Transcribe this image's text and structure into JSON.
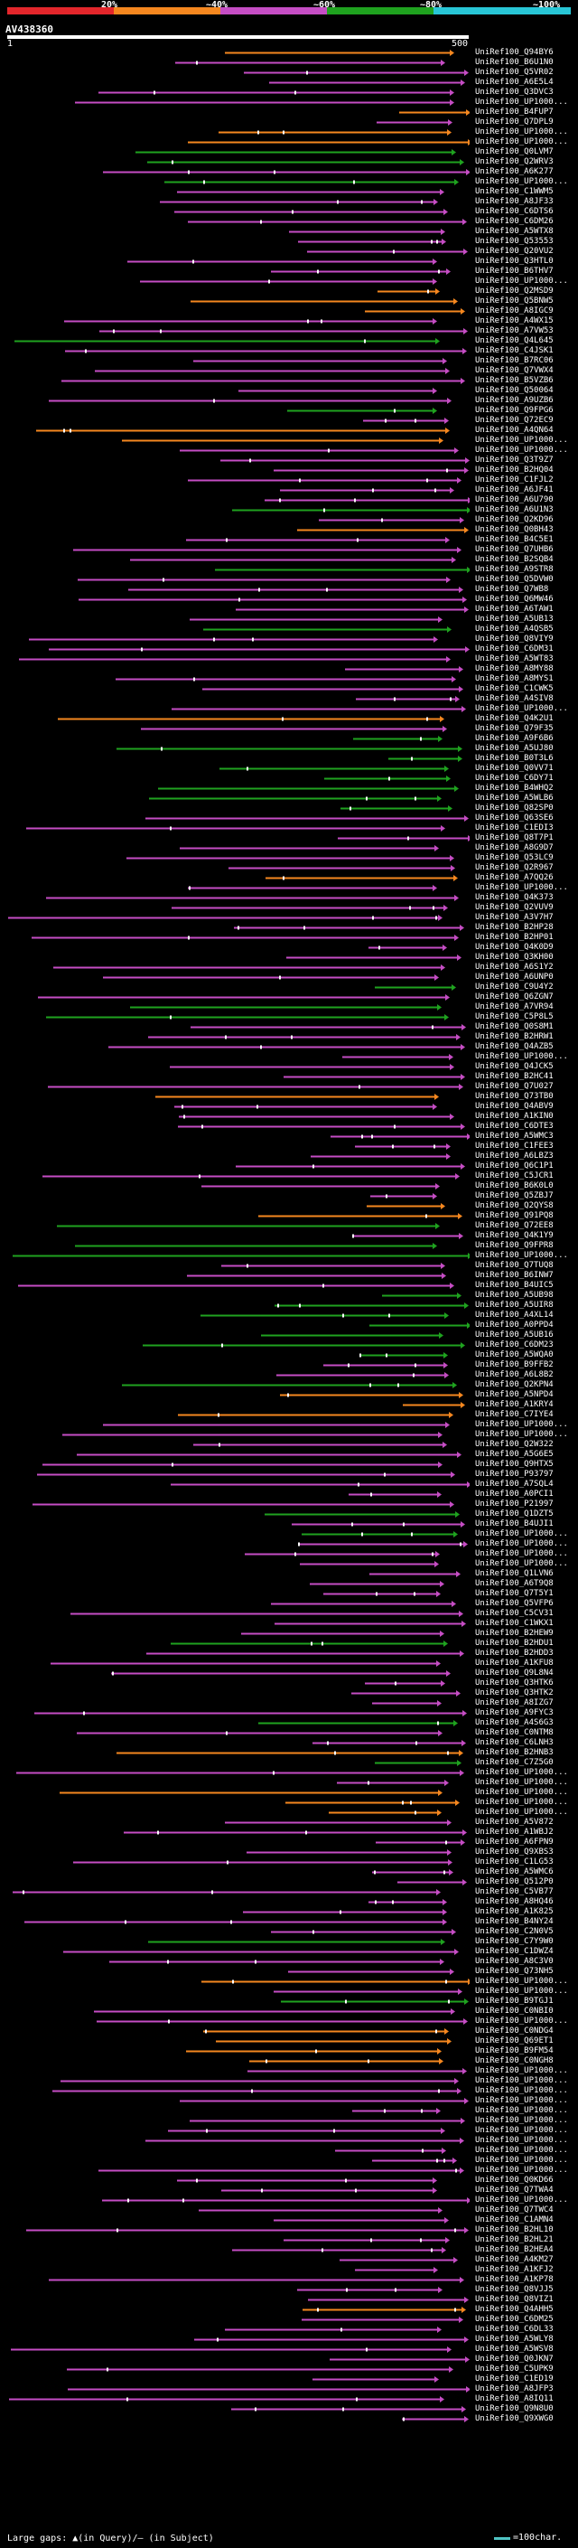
{
  "legend": {
    "colors": [
      "#e3262b",
      "#f5871f",
      "#c54dc4",
      "#1fa21f",
      "#28c6d6"
    ],
    "thresholds": [
      "20%",
      "~40%",
      "~60%",
      "~80%",
      "~100%"
    ]
  },
  "query": {
    "name": "AV438360",
    "start": "1",
    "end": "500"
  },
  "hits": [
    {
      "id": "UniRef100_Q94BY6",
      "color": "#f5871f"
    },
    {
      "id": "UniRef100_B6U1N0",
      "color": "#c54dc4"
    },
    {
      "id": "UniRef100_Q5VR02",
      "color": "#c54dc4"
    },
    {
      "id": "UniRef100_A6E5L4",
      "color": "#c54dc4"
    },
    {
      "id": "UniRef100_Q3DVC3",
      "color": "#c54dc4"
    },
    {
      "id": "UniRef100_UP1000...",
      "color": "#c54dc4"
    },
    {
      "id": "UniRef100_B4FUP7",
      "color": "#f5871f"
    },
    {
      "id": "UniRef100_Q7DPL9",
      "color": "#c54dc4"
    },
    {
      "id": "UniRef100_UP1000...",
      "color": "#f5871f"
    },
    {
      "id": "UniRef100_UP1000...",
      "color": "#f5871f"
    },
    {
      "id": "UniRef100_Q0LVM7",
      "color": "#1fa21f"
    },
    {
      "id": "UniRef100_Q2WRV3",
      "color": "#1fa21f"
    },
    {
      "id": "UniRef100_A6K277",
      "color": "#c54dc4"
    },
    {
      "id": "UniRef100_UP1000...",
      "color": "#1fa21f"
    },
    {
      "id": "UniRef100_C1WWM5",
      "color": "#c54dc4"
    },
    {
      "id": "UniRef100_A8JF33",
      "color": "#c54dc4"
    },
    {
      "id": "UniRef100_C6DTS6",
      "color": "#c54dc4"
    },
    {
      "id": "UniRef100_C6DM26",
      "color": "#c54dc4"
    },
    {
      "id": "UniRef100_A5WTX8",
      "color": "#c54dc4"
    },
    {
      "id": "UniRef100_Q53553",
      "color": "#c54dc4"
    },
    {
      "id": "UniRef100_Q20VU2",
      "color": "#c54dc4"
    },
    {
      "id": "UniRef100_Q3HTL0",
      "color": "#c54dc4"
    },
    {
      "id": "UniRef100_B6THV7",
      "color": "#c54dc4"
    },
    {
      "id": "UniRef100_UP1000...",
      "color": "#c54dc4"
    },
    {
      "id": "UniRef100_Q2MSD9",
      "color": "#f5871f"
    },
    {
      "id": "UniRef100_Q5BNW5",
      "color": "#f5871f"
    },
    {
      "id": "UniRef100_A8IGC9",
      "color": "#f5871f"
    },
    {
      "id": "UniRef100_A4WX15",
      "color": "#c54dc4"
    },
    {
      "id": "UniRef100_A7VW53",
      "color": "#c54dc4"
    },
    {
      "id": "UniRef100_Q4L645",
      "color": "#1fa21f"
    },
    {
      "id": "UniRef100_C4JSK1",
      "color": "#c54dc4"
    },
    {
      "id": "UniRef100_B7RC06",
      "color": "#c54dc4"
    },
    {
      "id": "UniRef100_Q7VWX4",
      "color": "#c54dc4"
    },
    {
      "id": "UniRef100_B5VZB6",
      "color": "#c54dc4"
    },
    {
      "id": "UniRef100_Q50064",
      "color": "#c54dc4"
    },
    {
      "id": "UniRef100_A9UZB6",
      "color": "#c54dc4"
    },
    {
      "id": "UniRef100_Q9FPG6",
      "color": "#1fa21f"
    },
    {
      "id": "UniRef100_Q72EC9",
      "color": "#c54dc4"
    },
    {
      "id": "UniRef100_A4QN64",
      "color": "#f5871f"
    },
    {
      "id": "UniRef100_UP1000...",
      "color": "#f5871f"
    },
    {
      "id": "UniRef100_UP1000...",
      "color": "#c54dc4"
    },
    {
      "id": "UniRef100_Q3T9Z7",
      "color": "#c54dc4"
    },
    {
      "id": "UniRef100_B2HQ04",
      "color": "#c54dc4"
    },
    {
      "id": "UniRef100_C1FJL2",
      "color": "#c54dc4"
    },
    {
      "id": "UniRef100_A6JF41",
      "color": "#c54dc4"
    },
    {
      "id": "UniRef100_A6U790",
      "color": "#c54dc4"
    },
    {
      "id": "UniRef100_A6U1N3",
      "color": "#1fa21f"
    },
    {
      "id": "UniRef100_Q2KD96",
      "color": "#c54dc4"
    },
    {
      "id": "UniRef100_Q0BH43",
      "color": "#f5871f"
    },
    {
      "id": "UniRef100_B4C5E1",
      "color": "#c54dc4"
    },
    {
      "id": "UniRef100_Q7UHB6",
      "color": "#c54dc4"
    },
    {
      "id": "UniRef100_B2SQB4",
      "color": "#c54dc4"
    },
    {
      "id": "UniRef100_A9STR8",
      "color": "#1fa21f"
    },
    {
      "id": "UniRef100_Q5DVW0",
      "color": "#c54dc4"
    },
    {
      "id": "UniRef100_Q7WB8",
      "color": "#c54dc4"
    },
    {
      "id": "UniRef100_Q6MW46",
      "color": "#c54dc4"
    },
    {
      "id": "UniRef100_A6TAW1",
      "color": "#c54dc4"
    },
    {
      "id": "UniRef100_A5UB13",
      "color": "#c54dc4"
    },
    {
      "id": "UniRef100_A4QSB5",
      "color": "#1fa21f"
    },
    {
      "id": "UniRef100_Q8VIY9",
      "color": "#c54dc4"
    },
    {
      "id": "UniRef100_C6DM31",
      "color": "#c54dc4"
    },
    {
      "id": "UniRef100_A5WT83",
      "color": "#c54dc4"
    },
    {
      "id": "UniRef100_A8MY88",
      "color": "#c54dc4"
    },
    {
      "id": "UniRef100_A8MYS1",
      "color": "#c54dc4"
    },
    {
      "id": "UniRef100_C1CWK5",
      "color": "#c54dc4"
    },
    {
      "id": "UniRef100_A4SIV8",
      "color": "#c54dc4"
    },
    {
      "id": "UniRef100_UP1000...",
      "color": "#c54dc4"
    },
    {
      "id": "UniRef100_Q4K2U1",
      "color": "#f5871f"
    },
    {
      "id": "UniRef100_Q79F35",
      "color": "#c54dc4"
    },
    {
      "id": "UniRef100_A9F6B6",
      "color": "#1fa21f"
    },
    {
      "id": "UniRef100_A5UJ80",
      "color": "#1fa21f"
    },
    {
      "id": "UniRef100_B0T3L6",
      "color": "#1fa21f"
    },
    {
      "id": "UniRef100_Q0VV71",
      "color": "#1fa21f"
    },
    {
      "id": "UniRef100_C6DY71",
      "color": "#1fa21f"
    },
    {
      "id": "UniRef100_B4WHQ2",
      "color": "#1fa21f"
    },
    {
      "id": "UniRef100_A5WLB6",
      "color": "#1fa21f"
    },
    {
      "id": "UniRef100_Q82SP0",
      "color": "#1fa21f"
    },
    {
      "id": "UniRef100_Q63SE6",
      "color": "#c54dc4"
    },
    {
      "id": "UniRef100_C1EDI3",
      "color": "#c54dc4"
    },
    {
      "id": "UniRef100_Q8T7P1",
      "color": "#c54dc4"
    },
    {
      "id": "UniRef100_A8G9D7",
      "color": "#c54dc4"
    },
    {
      "id": "UniRef100_Q53LC9",
      "color": "#c54dc4"
    },
    {
      "id": "UniRef100_Q2R967",
      "color": "#c54dc4"
    },
    {
      "id": "UniRef100_A7QQ26",
      "color": "#f5871f"
    },
    {
      "id": "UniRef100_UP1000...",
      "color": "#c54dc4"
    },
    {
      "id": "UniRef100_Q4K373",
      "color": "#c54dc4"
    },
    {
      "id": "UniRef100_Q2VUV9",
      "color": "#c54dc4"
    },
    {
      "id": "UniRef100_A3V7H7",
      "color": "#c54dc4"
    },
    {
      "id": "UniRef100_B2HP28",
      "color": "#c54dc4"
    },
    {
      "id": "UniRef100_B2HP01",
      "color": "#c54dc4"
    },
    {
      "id": "UniRef100_Q4K0D9",
      "color": "#c54dc4"
    },
    {
      "id": "UniRef100_Q3KH00",
      "color": "#c54dc4"
    },
    {
      "id": "UniRef100_A6S1Y2",
      "color": "#c54dc4"
    },
    {
      "id": "UniRef100_A6UNP0",
      "color": "#c54dc4"
    },
    {
      "id": "UniRef100_C9U4Y2",
      "color": "#1fa21f"
    },
    {
      "id": "UniRef100_Q6ZGN7",
      "color": "#c54dc4"
    },
    {
      "id": "UniRef100_A7VR94",
      "color": "#1fa21f"
    },
    {
      "id": "UniRef100_C5P8L5",
      "color": "#1fa21f"
    },
    {
      "id": "UniRef100_Q0S8M1",
      "color": "#c54dc4"
    },
    {
      "id": "UniRef100_B2HRW1",
      "color": "#c54dc4"
    },
    {
      "id": "UniRef100_Q4AZB5",
      "color": "#c54dc4"
    },
    {
      "id": "UniRef100_UP1000...",
      "color": "#c54dc4"
    },
    {
      "id": "UniRef100_Q4JCK5",
      "color": "#c54dc4"
    },
    {
      "id": "UniRef100_B2HC41",
      "color": "#c54dc4"
    },
    {
      "id": "UniRef100_Q7U027",
      "color": "#c54dc4"
    },
    {
      "id": "UniRef100_Q73TB0",
      "color": "#f5871f"
    },
    {
      "id": "UniRef100_Q4ABV9",
      "color": "#c54dc4"
    },
    {
      "id": "UniRef100_A1KIN0",
      "color": "#c54dc4"
    },
    {
      "id": "UniRef100_C6DTE3",
      "color": "#c54dc4"
    },
    {
      "id": "UniRef100_A5WMC3",
      "color": "#c54dc4"
    },
    {
      "id": "UniRef100_C1FEE3",
      "color": "#c54dc4"
    },
    {
      "id": "UniRef100_A6LBZ3",
      "color": "#c54dc4"
    },
    {
      "id": "UniRef100_Q6C1P1",
      "color": "#c54dc4"
    },
    {
      "id": "UniRef100_C5JCR1",
      "color": "#c54dc4"
    },
    {
      "id": "UniRef100_B6K0L0",
      "color": "#c54dc4"
    },
    {
      "id": "UniRef100_Q5ZBJ7",
      "color": "#c54dc4"
    },
    {
      "id": "UniRef100_Q2QYS8",
      "color": "#f5871f"
    },
    {
      "id": "UniRef100_Q91PQ8",
      "color": "#f5871f"
    },
    {
      "id": "UniRef100_Q72EE8",
      "color": "#1fa21f"
    },
    {
      "id": "UniRef100_Q4K1Y9",
      "color": "#c54dc4"
    },
    {
      "id": "UniRef100_Q9FPR8",
      "color": "#1fa21f"
    },
    {
      "id": "UniRef100_UP1000...",
      "color": "#1fa21f"
    },
    {
      "id": "UniRef100_Q7TUQ8",
      "color": "#c54dc4"
    },
    {
      "id": "UniRef100_B6INW7",
      "color": "#c54dc4"
    },
    {
      "id": "UniRef100_B4UIC5",
      "color": "#c54dc4"
    },
    {
      "id": "UniRef100_A5UB98",
      "color": "#1fa21f"
    },
    {
      "id": "UniRef100_A5UIR8",
      "color": "#1fa21f"
    },
    {
      "id": "UniRef100_A4XL14",
      "color": "#1fa21f"
    },
    {
      "id": "UniRef100_A0PPD4",
      "color": "#1fa21f"
    },
    {
      "id": "UniRef100_A5UB16",
      "color": "#1fa21f"
    },
    {
      "id": "UniRef100_C6DM23",
      "color": "#1fa21f"
    },
    {
      "id": "UniRef100_A5WQA0",
      "color": "#1fa21f"
    },
    {
      "id": "UniRef100_B9FFB2",
      "color": "#c54dc4"
    },
    {
      "id": "UniRef100_A6L8B2",
      "color": "#c54dc4"
    },
    {
      "id": "UniRef100_Q2KPN4",
      "color": "#1fa21f"
    },
    {
      "id": "UniRef100_A5NPD4",
      "color": "#f5871f"
    },
    {
      "id": "UniRef100_A1KRY4",
      "color": "#f5871f"
    },
    {
      "id": "UniRef100_C7IYE4",
      "color": "#f5871f"
    },
    {
      "id": "UniRef100_UP1000...",
      "color": "#c54dc4"
    },
    {
      "id": "UniRef100_UP1000...",
      "color": "#c54dc4"
    },
    {
      "id": "UniRef100_Q2W322",
      "color": "#c54dc4"
    },
    {
      "id": "UniRef100_A5G6E5",
      "color": "#c54dc4"
    },
    {
      "id": "UniRef100_Q9HTX5",
      "color": "#c54dc4"
    },
    {
      "id": "UniRef100_P93797",
      "color": "#c54dc4"
    },
    {
      "id": "UniRef100_A7SQL4",
      "color": "#c54dc4"
    },
    {
      "id": "UniRef100_A0PCI1",
      "color": "#c54dc4"
    },
    {
      "id": "UniRef100_P21997",
      "color": "#c54dc4"
    },
    {
      "id": "UniRef100_Q1DZT5",
      "color": "#1fa21f"
    },
    {
      "id": "UniRef100_B4UJI1",
      "color": "#c54dc4"
    },
    {
      "id": "UniRef100_UP1000...",
      "color": "#1fa21f"
    },
    {
      "id": "UniRef100_UP1000...",
      "color": "#c54dc4"
    },
    {
      "id": "UniRef100_UP1000...",
      "color": "#c54dc4"
    },
    {
      "id": "UniRef100_UP1000...",
      "color": "#c54dc4"
    },
    {
      "id": "UniRef100_Q1LVN6",
      "color": "#c54dc4"
    },
    {
      "id": "UniRef100_A6T9Q8",
      "color": "#c54dc4"
    },
    {
      "id": "UniRef100_Q7T5Y1",
      "color": "#c54dc4"
    },
    {
      "id": "UniRef100_Q5VFP6",
      "color": "#c54dc4"
    },
    {
      "id": "UniRef100_C5CV31",
      "color": "#c54dc4"
    },
    {
      "id": "UniRef100_C1WKX1",
      "color": "#c54dc4"
    },
    {
      "id": "UniRef100_B2HEW9",
      "color": "#c54dc4"
    },
    {
      "id": "UniRef100_B2HDU1",
      "color": "#1fa21f"
    },
    {
      "id": "UniRef100_B2HDD3",
      "color": "#c54dc4"
    },
    {
      "id": "UniRef100_A1KFU8",
      "color": "#c54dc4"
    },
    {
      "id": "UniRef100_Q9L8N4",
      "color": "#c54dc4"
    },
    {
      "id": "UniRef100_Q3HTK6",
      "color": "#c54dc4"
    },
    {
      "id": "UniRef100_Q3HTK2",
      "color": "#c54dc4"
    },
    {
      "id": "UniRef100_A8IZG7",
      "color": "#c54dc4"
    },
    {
      "id": "UniRef100_A9FYC3",
      "color": "#c54dc4"
    },
    {
      "id": "UniRef100_A4S6G3",
      "color": "#1fa21f"
    },
    {
      "id": "UniRef100_C0NTM8",
      "color": "#c54dc4"
    },
    {
      "id": "UniRef100_C6LNH3",
      "color": "#c54dc4"
    },
    {
      "id": "UniRef100_B2HNB3",
      "color": "#f5871f"
    },
    {
      "id": "UniRef100_C7Z5G0",
      "color": "#1fa21f"
    },
    {
      "id": "UniRef100_UP1000...",
      "color": "#c54dc4"
    },
    {
      "id": "UniRef100_UP1000...",
      "color": "#c54dc4"
    },
    {
      "id": "UniRef100_UP1000...",
      "color": "#f5871f"
    },
    {
      "id": "UniRef100_UP1000...",
      "color": "#f5871f"
    },
    {
      "id": "UniRef100_UP1000...",
      "color": "#f5871f"
    },
    {
      "id": "UniRef100_A5V872",
      "color": "#c54dc4"
    },
    {
      "id": "UniRef100_A1WBJ2",
      "color": "#c54dc4"
    },
    {
      "id": "UniRef100_A6FPN9",
      "color": "#c54dc4"
    },
    {
      "id": "UniRef100_Q9XBS3",
      "color": "#c54dc4"
    },
    {
      "id": "UniRef100_C1LG53",
      "color": "#c54dc4"
    },
    {
      "id": "UniRef100_A5WMC6",
      "color": "#c54dc4"
    },
    {
      "id": "UniRef100_Q512P0",
      "color": "#c54dc4"
    },
    {
      "id": "UniRef100_C5VB77",
      "color": "#c54dc4"
    },
    {
      "id": "UniRef100_A8HQ46",
      "color": "#c54dc4"
    },
    {
      "id": "UniRef100_A1K825",
      "color": "#c54dc4"
    },
    {
      "id": "UniRef100_B4NY24",
      "color": "#c54dc4"
    },
    {
      "id": "UniRef100_C2N0V5",
      "color": "#c54dc4"
    },
    {
      "id": "UniRef100_C7Y9W0",
      "color": "#1fa21f"
    },
    {
      "id": "UniRef100_C1DWZ4",
      "color": "#c54dc4"
    },
    {
      "id": "UniRef100_A8C3V0",
      "color": "#c54dc4"
    },
    {
      "id": "UniRef100_Q73NH5",
      "color": "#c54dc4"
    },
    {
      "id": "UniRef100_UP1000...",
      "color": "#f5871f"
    },
    {
      "id": "UniRef100_UP1000...",
      "color": "#c54dc4"
    },
    {
      "id": "UniRef100_B9TGJ1",
      "color": "#1fa21f"
    },
    {
      "id": "UniRef100_C0NBI0",
      "color": "#c54dc4"
    },
    {
      "id": "UniRef100_UP1000...",
      "color": "#c54dc4"
    },
    {
      "id": "UniRef100_C0NDG4",
      "color": "#f5871f"
    },
    {
      "id": "UniRef100_Q69ET1",
      "color": "#f5871f"
    },
    {
      "id": "UniRef100_B9FM54",
      "color": "#f5871f"
    },
    {
      "id": "UniRef100_C0NGH8",
      "color": "#f5871f"
    },
    {
      "id": "UniRef100_UP1000...",
      "color": "#c54dc4"
    },
    {
      "id": "UniRef100_UP1000...",
      "color": "#c54dc4"
    },
    {
      "id": "UniRef100_UP1000...",
      "color": "#c54dc4"
    },
    {
      "id": "UniRef100_UP1000...",
      "color": "#c54dc4"
    },
    {
      "id": "UniRef100_UP1000...",
      "color": "#c54dc4"
    },
    {
      "id": "UniRef100_UP1000...",
      "color": "#c54dc4"
    },
    {
      "id": "UniRef100_UP1000...",
      "color": "#c54dc4"
    },
    {
      "id": "UniRef100_UP1000...",
      "color": "#c54dc4"
    },
    {
      "id": "UniRef100_UP1000...",
      "color": "#c54dc4"
    },
    {
      "id": "UniRef100_UP1000...",
      "color": "#c54dc4"
    },
    {
      "id": "UniRef100_UP1000...",
      "color": "#c54dc4"
    },
    {
      "id": "UniRef100_Q0KD66",
      "color": "#c54dc4"
    },
    {
      "id": "UniRef100_Q7TWA4",
      "color": "#c54dc4"
    },
    {
      "id": "UniRef100_UP1000...",
      "color": "#c54dc4"
    },
    {
      "id": "UniRef100_Q7TWC4",
      "color": "#c54dc4"
    },
    {
      "id": "UniRef100_C1AMN4",
      "color": "#c54dc4"
    },
    {
      "id": "UniRef100_B2HL10",
      "color": "#c54dc4"
    },
    {
      "id": "UniRef100_B2HL21",
      "color": "#c54dc4"
    },
    {
      "id": "UniRef100_B2HEA4",
      "color": "#c54dc4"
    },
    {
      "id": "UniRef100_A4KM27",
      "color": "#c54dc4"
    },
    {
      "id": "UniRef100_A1KFJ2",
      "color": "#c54dc4"
    },
    {
      "id": "UniRef100_A1KP78",
      "color": "#c54dc4"
    },
    {
      "id": "UniRef100_Q8VJJ5",
      "color": "#c54dc4"
    },
    {
      "id": "UniRef100_Q8VIZ1",
      "color": "#c54dc4"
    },
    {
      "id": "UniRef100_Q4AHH5",
      "color": "#f5871f"
    },
    {
      "id": "UniRef100_C6DM25",
      "color": "#c54dc4"
    },
    {
      "id": "UniRef100_C6DL33",
      "color": "#c54dc4"
    },
    {
      "id": "UniRef100_A5WLY8",
      "color": "#c54dc4"
    },
    {
      "id": "UniRef100_A5WSV8",
      "color": "#c54dc4"
    },
    {
      "id": "UniRef100_Q0JKN7",
      "color": "#c54dc4"
    },
    {
      "id": "UniRef100_C5UPK9",
      "color": "#c54dc4"
    },
    {
      "id": "UniRef100_C1ED19",
      "color": "#c54dc4"
    },
    {
      "id": "UniRef100_A8JFP3",
      "color": "#c54dc4"
    },
    {
      "id": "UniRef100_A8IQ11",
      "color": "#c54dc4"
    },
    {
      "id": "UniRef100_Q9N8U0",
      "color": "#c54dc4"
    },
    {
      "id": "UniRef100_Q9XWG0",
      "color": "#c54dc4"
    }
  ],
  "footer": {
    "text": "Large gaps: ▲(in Query)/— (in Subject)",
    "scale": "=100char."
  }
}
